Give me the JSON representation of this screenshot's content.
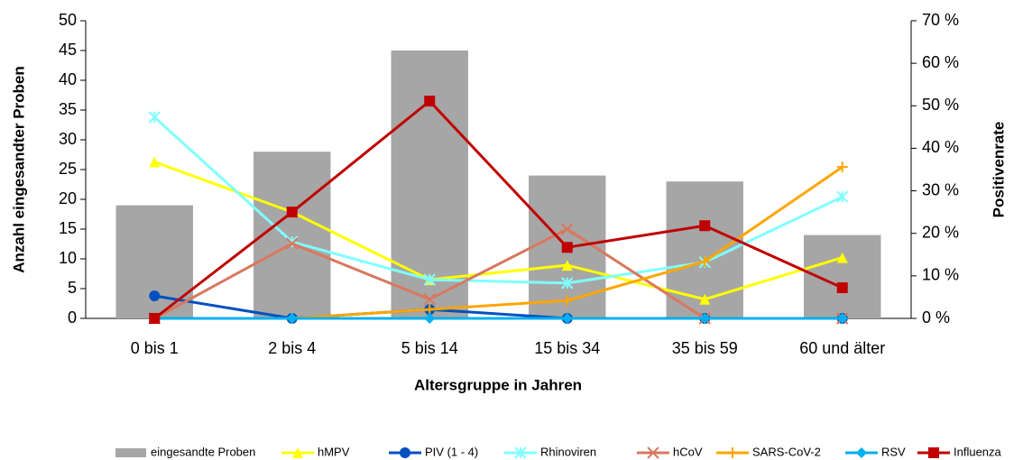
{
  "chart_data": {
    "type": "bar-line",
    "x_label": "Altersgruppe in Jahren",
    "y_label": "Anzahl eingesandter Proben",
    "y2_label": "Positivenrate",
    "categories": [
      "0 bis 1",
      "2 bis 4",
      "5 bis 14",
      "15 bis 34",
      "35 bis 59",
      "60 und älter"
    ],
    "ylim": [
      0,
      50
    ],
    "yticks": [
      0,
      5,
      10,
      15,
      20,
      25,
      30,
      35,
      40,
      45,
      50
    ],
    "y2lim": [
      0,
      70
    ],
    "y2ticks": [
      {
        "value": 0,
        "label": "0 %"
      },
      {
        "value": 10,
        "label": "10 %"
      },
      {
        "value": 20,
        "label": "20 %"
      },
      {
        "value": 30,
        "label": "30 %"
      },
      {
        "value": 40,
        "label": "40 %"
      },
      {
        "value": 50,
        "label": "50 %"
      },
      {
        "value": 60,
        "label": "60 %"
      },
      {
        "value": 70,
        "label": "70 %"
      }
    ],
    "legend": "bottom",
    "series": [
      {
        "name": "eingesandte Proben",
        "type": "bar",
        "color": "#a6a6a6",
        "values": [
          19,
          28,
          45,
          24,
          23,
          14
        ]
      },
      {
        "name": "hMPV",
        "type": "line",
        "axis": "y2",
        "marker": "triangle",
        "color": "#ffff00",
        "values": [
          36.8,
          25,
          9.1,
          12.5,
          4.5,
          14.3
        ]
      },
      {
        "name": "PIV (1 - 4)",
        "type": "line",
        "axis": "y2",
        "marker": "circle",
        "color": "#0050c0",
        "values": [
          5.3,
          0,
          2.1,
          0,
          0,
          0
        ]
      },
      {
        "name": "Rhinoviren",
        "type": "line",
        "axis": "y2",
        "marker": "star",
        "color": "#80ffff",
        "values": [
          47.3,
          18,
          9.1,
          8.3,
          13.2,
          28.6
        ]
      },
      {
        "name": "hCoV",
        "type": "line",
        "axis": "y2",
        "marker": "x",
        "color": "#d87860",
        "values": [
          0,
          17.6,
          4.5,
          21,
          0,
          0
        ]
      },
      {
        "name": "SARS-CoV-2",
        "type": "line",
        "axis": "y2",
        "marker": "plus",
        "color": "#ffa500",
        "values": [
          0,
          0,
          2.1,
          4.2,
          13.4,
          35.6
        ]
      },
      {
        "name": "RSV",
        "type": "line",
        "axis": "y2",
        "marker": "diamond",
        "color": "#00b0f0",
        "values": [
          0,
          0,
          0,
          0,
          0,
          0
        ]
      },
      {
        "name": "Influenza",
        "type": "line",
        "axis": "y2",
        "marker": "square",
        "color": "#c00000",
        "values": [
          0,
          25,
          51.1,
          16.7,
          21.8,
          7.2
        ]
      }
    ]
  }
}
